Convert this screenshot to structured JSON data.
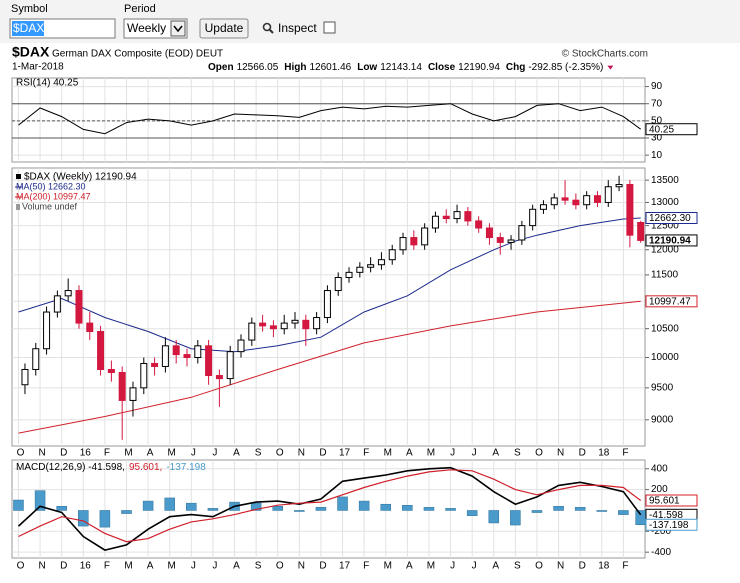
{
  "toolbar": {
    "symbol_label": "Symbol",
    "symbol": "$DAX",
    "period_label": "Period",
    "period": "Weekly",
    "update": "Update",
    "inspect": "Inspect"
  },
  "header": {
    "ticker": "$DAX",
    "name": "German DAX Composite (EOD) DEUT",
    "credit": "© StockCharts.com",
    "date": "1-Mar-2018",
    "quote": [
      {
        "label": "Open",
        "value": "12566.05"
      },
      {
        "label": "High",
        "value": "12601.46"
      },
      {
        "label": "Low",
        "value": "12143.14"
      },
      {
        "label": "Close",
        "value": "12190.94"
      },
      {
        "label": "Chg",
        "value": "-292.85 (-2.35%)"
      }
    ]
  },
  "chart_data": [
    {
      "type": "line",
      "legend": "RSI(14) 40.25",
      "color": "#000000",
      "x": [
        0,
        1,
        2,
        3,
        4,
        5,
        6,
        7,
        8,
        9,
        10,
        11,
        12,
        13,
        14,
        15,
        16,
        17,
        18,
        19,
        20,
        21,
        22,
        23,
        24,
        25,
        26,
        27,
        28,
        28.8
      ],
      "values": [
        45,
        65,
        55,
        40,
        35,
        48,
        52,
        50,
        45,
        50,
        58,
        57,
        56,
        54,
        62,
        66,
        64,
        67,
        66,
        68,
        70,
        58,
        50,
        55,
        68,
        70,
        62,
        66,
        55,
        40.25
      ],
      "last_label": "40.25",
      "ylim": [
        2,
        100
      ],
      "yticks": [
        10,
        30,
        50,
        70,
        90
      ],
      "bands": [
        30,
        70
      ],
      "midline": 50
    },
    {
      "type": "candlestick",
      "legend": "$DAX (Weekly) 12190.94",
      "volume_legend": "Volume undef",
      "log": true,
      "up_color": "#000000",
      "down_color": "#d3173f",
      "xlim": [
        -0.3,
        29
      ],
      "xticks": [
        {
          "value": 0,
          "label": "O"
        },
        {
          "value": 1,
          "label": "N"
        },
        {
          "value": 2,
          "label": "D"
        },
        {
          "value": 3,
          "label": "16"
        },
        {
          "value": 4,
          "label": "F"
        },
        {
          "value": 5,
          "label": "M"
        },
        {
          "value": 6,
          "label": "A"
        },
        {
          "value": 7,
          "label": "M"
        },
        {
          "value": 8,
          "label": "J"
        },
        {
          "value": 9,
          "label": "J"
        },
        {
          "value": 10,
          "label": "A"
        },
        {
          "value": 11,
          "label": "S"
        },
        {
          "value": 12,
          "label": "O"
        },
        {
          "value": 13,
          "label": "N"
        },
        {
          "value": 14,
          "label": "D"
        },
        {
          "value": 15,
          "label": "17"
        },
        {
          "value": 16,
          "label": "F"
        },
        {
          "value": 17,
          "label": "M"
        },
        {
          "value": 18,
          "label": "A"
        },
        {
          "value": 19,
          "label": "M"
        },
        {
          "value": 20,
          "label": "J"
        },
        {
          "value": 21,
          "label": "J"
        },
        {
          "value": 22,
          "label": "A"
        },
        {
          "value": 23,
          "label": "S"
        },
        {
          "value": 24,
          "label": "O"
        },
        {
          "value": 25,
          "label": "N"
        },
        {
          "value": 26,
          "label": "D"
        },
        {
          "value": 27,
          "label": "18"
        },
        {
          "value": 28,
          "label": "F"
        }
      ],
      "ylim": [
        8610,
        13780
      ],
      "yticks": [
        9000,
        9500,
        10000,
        10500,
        11000,
        11500,
        12000,
        12500,
        13000,
        13500
      ],
      "x": [
        0.3,
        0.8,
        1.3,
        1.8,
        2.3,
        2.8,
        3.3,
        3.8,
        4.3,
        4.8,
        5.3,
        5.8,
        6.3,
        6.8,
        7.3,
        7.8,
        8.3,
        8.8,
        9.3,
        9.8,
        10.3,
        10.8,
        11.3,
        11.8,
        12.3,
        12.8,
        13.3,
        13.8,
        14.3,
        14.8,
        15.3,
        15.8,
        16.3,
        16.8,
        17.3,
        17.8,
        18.3,
        18.8,
        19.3,
        19.8,
        20.3,
        20.8,
        21.3,
        21.8,
        22.3,
        22.8,
        23.3,
        23.8,
        24.3,
        24.8,
        25.3,
        25.8,
        26.3,
        26.8,
        27.3,
        27.8,
        28.3,
        28.8
      ],
      "open": [
        9550,
        9800,
        10150,
        10800,
        11100,
        11200,
        10600,
        10450,
        9800,
        9750,
        9300,
        9500,
        9900,
        9850,
        10200,
        10050,
        10000,
        10200,
        9700,
        9650,
        10100,
        10300,
        10600,
        10550,
        10500,
        10600,
        10650,
        10500,
        10700,
        11200,
        11450,
        11550,
        11650,
        11700,
        11800,
        12000,
        12250,
        12100,
        12450,
        12700,
        12650,
        12800,
        12600,
        12450,
        12250,
        12150,
        12200,
        12500,
        12850,
        12950,
        13100,
        13050,
        12950,
        13150,
        13000,
        13350,
        13400,
        12566.05
      ],
      "high": [
        9900,
        10250,
        10900,
        11200,
        11430,
        11300,
        10800,
        10550,
        9950,
        9850,
        9600,
        10000,
        10000,
        10350,
        10300,
        10150,
        10300,
        10300,
        9800,
        10200,
        10400,
        10700,
        10750,
        10650,
        10750,
        10800,
        10750,
        10800,
        11300,
        11550,
        11650,
        11750,
        11850,
        11950,
        12100,
        12350,
        12400,
        12550,
        12800,
        12850,
        12950,
        12900,
        12700,
        12550,
        12350,
        12300,
        12600,
        12950,
        13050,
        13200,
        13500,
        13200,
        13250,
        13250,
        13500,
        13600,
        13500,
        12601.46
      ],
      "low": [
        9400,
        9700,
        10050,
        10700,
        11000,
        10500,
        10300,
        9700,
        9600,
        8700,
        9050,
        9400,
        9700,
        9750,
        9900,
        9850,
        9900,
        9550,
        9200,
        9550,
        10000,
        10200,
        10450,
        10350,
        10400,
        10500,
        10200,
        10400,
        10600,
        11100,
        11350,
        11450,
        11550,
        11600,
        11700,
        11900,
        12000,
        12000,
        12350,
        12550,
        12550,
        12500,
        12350,
        12100,
        11900,
        12000,
        12100,
        12400,
        12750,
        12850,
        12950,
        12850,
        12850,
        12900,
        12900,
        13250,
        12050,
        12143.14
      ],
      "close": [
        9800,
        10150,
        10800,
        11100,
        11200,
        10600,
        10450,
        9800,
        9750,
        9300,
        9500,
        9900,
        9850,
        10200,
        10050,
        10000,
        10200,
        9700,
        9650,
        10100,
        10300,
        10600,
        10550,
        10500,
        10600,
        10650,
        10500,
        10700,
        11200,
        11450,
        11550,
        11650,
        11700,
        11800,
        12000,
        12250,
        12100,
        12450,
        12700,
        12650,
        12800,
        12600,
        12450,
        12250,
        12150,
        12200,
        12500,
        12850,
        12950,
        13100,
        13050,
        12950,
        13150,
        13000,
        13350,
        13400,
        12300,
        12190.94
      ],
      "last_label": "12190.94",
      "series": [
        {
          "name": "MA(50) 12662.30",
          "color": "#1c2a8c",
          "x": [
            0,
            2,
            4,
            6,
            8,
            10,
            12,
            14,
            16,
            18,
            20,
            22,
            23,
            24,
            26,
            28,
            28.8
          ],
          "values": [
            10800,
            11050,
            10700,
            10450,
            10150,
            10100,
            10200,
            10350,
            10800,
            11100,
            11600,
            12000,
            12180,
            12300,
            12500,
            12640,
            12662.3
          ],
          "last_label": "12662.30"
        },
        {
          "name": "MA(200) 10997.47",
          "color": "#d0202a",
          "x": [
            0,
            4,
            8,
            12,
            16,
            20,
            24,
            28.8
          ],
          "values": [
            8800,
            9050,
            9350,
            9800,
            10250,
            10550,
            10800,
            10997.47
          ],
          "last_label": "10997.47"
        }
      ]
    },
    {
      "type": "macd",
      "ylim": [
        -456,
        484
      ],
      "yticks": [
        -400,
        -200,
        200,
        400
      ],
      "x": [
        0,
        1,
        2,
        3,
        4,
        5,
        6,
        7,
        8,
        9,
        10,
        11,
        12,
        13,
        14,
        15,
        16,
        17,
        18,
        19,
        20,
        21,
        22,
        23,
        24,
        25,
        26,
        27,
        28,
        28.8
      ],
      "series": [
        {
          "kind": "line",
          "legend": "MACD(12,26,9) -41.598,",
          "color": "#000000",
          "last_label": "-41.598",
          "values": [
            -150,
            40,
            -20,
            -250,
            -380,
            -330,
            -180,
            -60,
            -40,
            -60,
            40,
            80,
            90,
            60,
            110,
            280,
            310,
            340,
            380,
            400,
            410,
            330,
            180,
            60,
            130,
            240,
            270,
            230,
            180,
            -41.598
          ]
        },
        {
          "kind": "line",
          "legend": "95.601,",
          "color": "#d0202a",
          "last_label": "95.601",
          "values": [
            -250,
            -150,
            -60,
            -100,
            -220,
            -300,
            -270,
            -180,
            -110,
            -80,
            -40,
            10,
            50,
            70,
            80,
            150,
            220,
            280,
            330,
            370,
            390,
            380,
            300,
            200,
            150,
            200,
            240,
            240,
            220,
            95.601
          ]
        },
        {
          "kind": "bar",
          "legend": "-137.198",
          "color": "#4a9bcc",
          "last_label": "-137.198",
          "values": [
            100,
            190,
            40,
            -150,
            -160,
            -30,
            90,
            120,
            70,
            20,
            80,
            70,
            40,
            -10,
            30,
            130,
            90,
            60,
            50,
            30,
            20,
            -50,
            -120,
            -140,
            -20,
            40,
            30,
            -10,
            -40,
            -137.198
          ]
        }
      ]
    }
  ]
}
